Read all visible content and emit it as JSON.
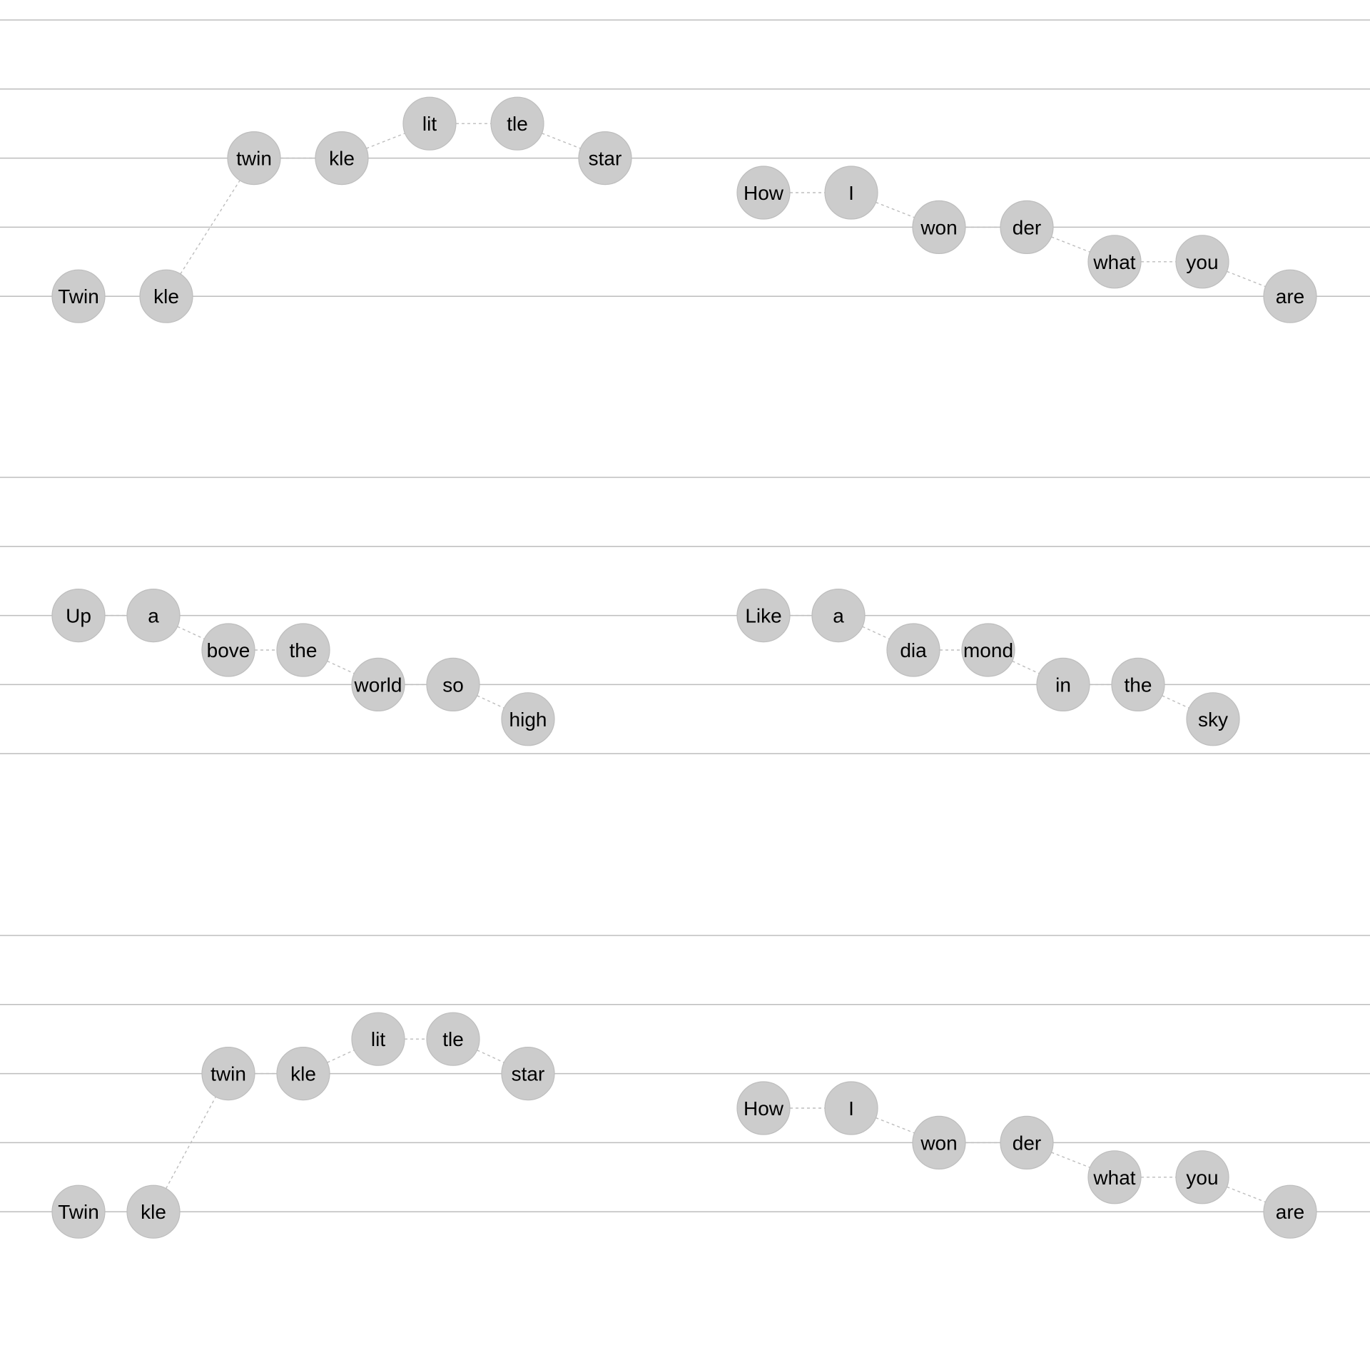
{
  "colors": {
    "staff_line": "#bdbdbd",
    "note_fill": "#cccccc",
    "note_stroke": "#bdbdbd",
    "connector": "#bdbdbd",
    "text": "#000000"
  },
  "staves": [
    {
      "phrases": [
        {
          "notes": [
            {
              "syllable": "Twin",
              "pitch": 0
            },
            {
              "syllable": "kle",
              "pitch": 0
            },
            {
              "syllable": "twin",
              "pitch": 4
            },
            {
              "syllable": "kle",
              "pitch": 4
            },
            {
              "syllable": "lit",
              "pitch": 5
            },
            {
              "syllable": "tle",
              "pitch": 5
            },
            {
              "syllable": "star",
              "pitch": 4
            }
          ]
        },
        {
          "notes": [
            {
              "syllable": "How",
              "pitch": 3
            },
            {
              "syllable": "I",
              "pitch": 3
            },
            {
              "syllable": "won",
              "pitch": 2
            },
            {
              "syllable": "der",
              "pitch": 2
            },
            {
              "syllable": "what",
              "pitch": 1
            },
            {
              "syllable": "you",
              "pitch": 1
            },
            {
              "syllable": "are",
              "pitch": 0
            }
          ]
        }
      ]
    },
    {
      "phrases": [
        {
          "notes": [
            {
              "syllable": "Up",
              "pitch": 4
            },
            {
              "syllable": "a",
              "pitch": 4
            },
            {
              "syllable": "bove",
              "pitch": 3
            },
            {
              "syllable": "the",
              "pitch": 3
            },
            {
              "syllable": "world",
              "pitch": 2
            },
            {
              "syllable": "so",
              "pitch": 2
            },
            {
              "syllable": "high",
              "pitch": 1
            }
          ]
        },
        {
          "notes": [
            {
              "syllable": "Like",
              "pitch": 4
            },
            {
              "syllable": "a",
              "pitch": 4
            },
            {
              "syllable": "dia",
              "pitch": 3
            },
            {
              "syllable": "mond",
              "pitch": 3
            },
            {
              "syllable": "in",
              "pitch": 2
            },
            {
              "syllable": "the",
              "pitch": 2
            },
            {
              "syllable": "sky",
              "pitch": 1
            }
          ]
        }
      ]
    },
    {
      "phrases": [
        {
          "notes": [
            {
              "syllable": "Twin",
              "pitch": 0
            },
            {
              "syllable": "kle",
              "pitch": 0
            },
            {
              "syllable": "twin",
              "pitch": 4
            },
            {
              "syllable": "kle",
              "pitch": 4
            },
            {
              "syllable": "lit",
              "pitch": 5
            },
            {
              "syllable": "tle",
              "pitch": 5
            },
            {
              "syllable": "star",
              "pitch": 4
            }
          ]
        },
        {
          "notes": [
            {
              "syllable": "How",
              "pitch": 3
            },
            {
              "syllable": "I",
              "pitch": 3
            },
            {
              "syllable": "won",
              "pitch": 2
            },
            {
              "syllable": "der",
              "pitch": 2
            },
            {
              "syllable": "what",
              "pitch": 1
            },
            {
              "syllable": "you",
              "pitch": 1
            },
            {
              "syllable": "are",
              "pitch": 0
            }
          ]
        }
      ]
    }
  ]
}
